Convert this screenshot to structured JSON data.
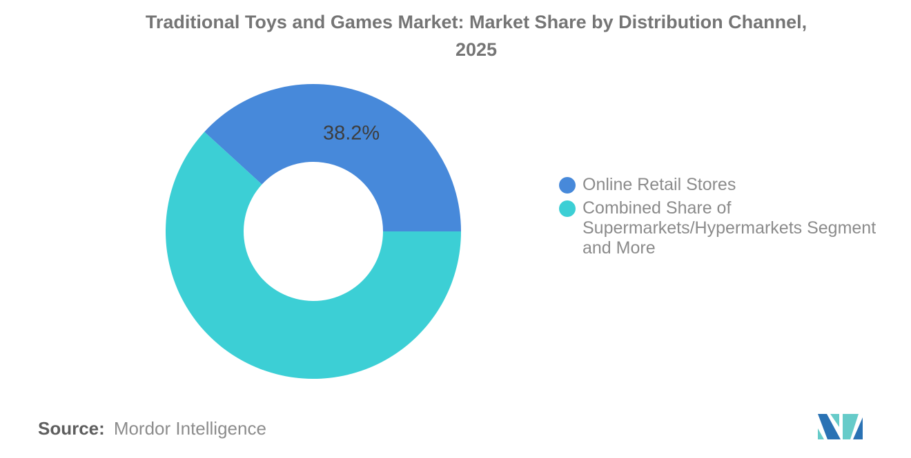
{
  "title": {
    "line1": "Traditional Toys and Games Market: Market Share by Distribution Channel,",
    "line2": "2025"
  },
  "source": {
    "label": "Source:",
    "value": "Mordor Intelligence"
  },
  "branding": {
    "logo": "mordor-intelligence-logo",
    "logo_blue": "#2a72b4",
    "logo_teal": "#66cbc9"
  },
  "chart_data": {
    "type": "pie",
    "donut": true,
    "title": "Traditional Toys and Games Market: Market Share by Distribution Channel, 2025",
    "legend_position": "right",
    "background": "#ffffff",
    "label_color": "#3d3d3d",
    "legend_text_color": "#8b8b8b",
    "slices": [
      {
        "label": "Online Retail Stores",
        "value": 38.2,
        "color": "#4789da",
        "data_label": "38.2%"
      },
      {
        "label": "Combined Share of\nSupermarkets/Hypermarkets Segment and More",
        "value": 61.8,
        "color": "#3ccfd5",
        "data_label": null
      }
    ]
  }
}
